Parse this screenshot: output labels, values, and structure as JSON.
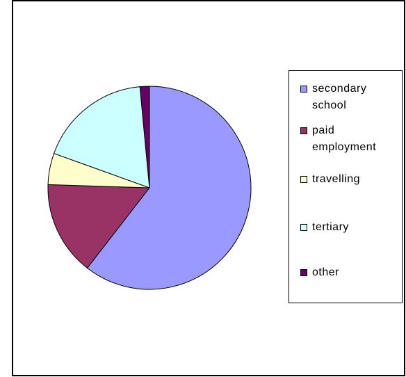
{
  "chart_data": {
    "type": "pie",
    "title": "",
    "legend_position": "right",
    "categories": [
      "secondary school",
      "paid employment",
      "travelling",
      "tertiary",
      "other"
    ],
    "values": [
      60.5,
      15.0,
      5.0,
      18.0,
      1.5
    ],
    "colors": [
      "#9999ff",
      "#993366",
      "#ffffcc",
      "#ccffff",
      "#660066"
    ]
  },
  "legend": {
    "items": [
      {
        "label": "secondary\nschool",
        "color": "#9999ff",
        "icon": "square-swatch"
      },
      {
        "label": "paid\nemployment",
        "color": "#993366",
        "icon": "square-swatch"
      },
      {
        "label": "travelling",
        "color": "#ffffcc",
        "icon": "square-swatch"
      },
      {
        "label": "tertiary",
        "color": "#ccffff",
        "icon": "square-swatch"
      },
      {
        "label": "other",
        "color": "#660066",
        "icon": "square-swatch"
      }
    ]
  }
}
